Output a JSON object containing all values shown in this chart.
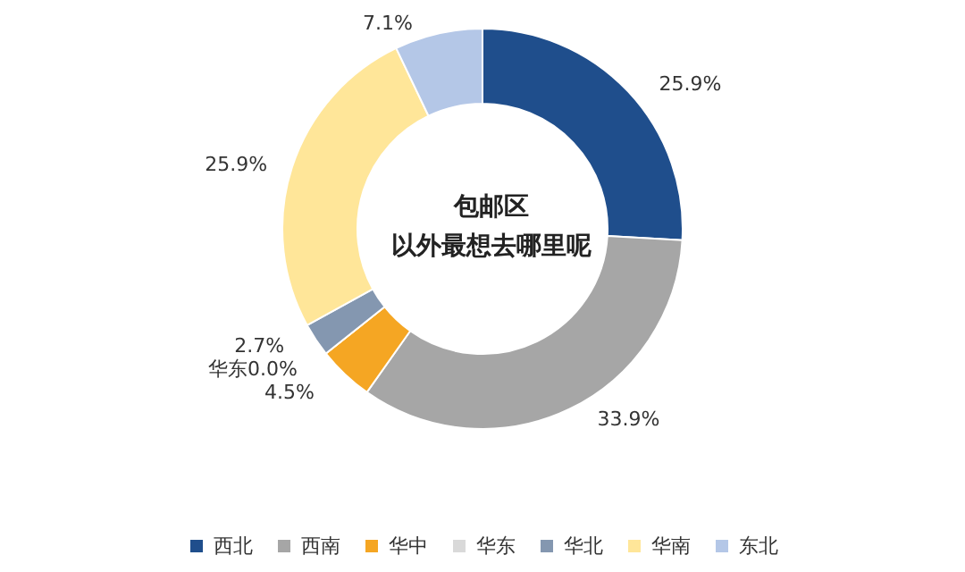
{
  "chart_data": {
    "type": "donut",
    "title": "包邮区",
    "subtitle": "以外最想去哪里呢",
    "categories": [
      "西北",
      "西南",
      "华中",
      "华东",
      "华北",
      "华南",
      "东北"
    ],
    "values": [
      25.9,
      33.9,
      4.5,
      0.0,
      2.7,
      25.9,
      7.1
    ],
    "colors": [
      "#1f4e8c",
      "#a6a6a6",
      "#f5a623",
      "#d9d9d9",
      "#8497b0",
      "#ffe699",
      "#b4c7e7"
    ],
    "value_labels": [
      "25.9%",
      "33.9%",
      "4.5%",
      "华东0.0%",
      "2.7%",
      "25.9%",
      "7.1%"
    ],
    "legend": "bottom"
  }
}
